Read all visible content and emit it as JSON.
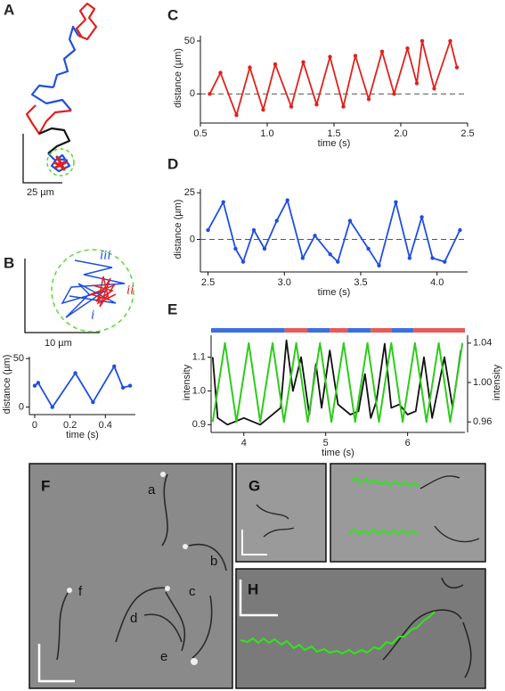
{
  "panel_letters": [
    "A",
    "B",
    "C",
    "D",
    "E",
    "F",
    "G",
    "H"
  ],
  "scale_labels": [
    "25 µm",
    "10 µm"
  ],
  "trajectory_labels": [
    "i",
    "ii",
    "iii"
  ],
  "cell_labels": [
    "a",
    "b",
    "c",
    "d",
    "e",
    "f"
  ],
  "chart_data": [
    {
      "type": "line",
      "xlabel": "time (s)",
      "ylabel": "distance (µm)",
      "x": [
        0.57,
        0.65,
        0.77,
        0.87,
        0.97,
        1.06,
        1.18,
        1.27,
        1.37,
        1.47,
        1.57,
        1.66,
        1.76,
        1.86,
        1.95,
        2.05,
        2.12,
        2.16,
        2.25,
        2.37,
        2.42
      ],
      "series": [
        {
          "color": "#e3201c",
          "values": [
            0,
            20,
            -20,
            25,
            -15,
            28,
            -12,
            30,
            -10,
            35,
            -12,
            36,
            -5,
            40,
            0,
            43,
            10,
            50,
            5,
            50,
            25
          ]
        }
      ],
      "xlim": [
        0.5,
        2.5
      ],
      "xticks": [
        0.5,
        {
          "value": 1,
          "label": "1.0"
        },
        1.5,
        {
          "value": 2,
          "label": "2.0"
        },
        2.5
      ],
      "ylim": [
        -25,
        55
      ],
      "yticks": [
        0,
        50
      ],
      "reference_line": 0
    },
    {
      "type": "line",
      "xlabel": "time (s)",
      "ylabel": "distance (µm)",
      "x": [
        2.5,
        2.6,
        2.68,
        2.73,
        2.8,
        2.87,
        2.95,
        3.02,
        3.12,
        3.2,
        3.3,
        3.35,
        3.43,
        3.55,
        3.62,
        3.73,
        3.82,
        3.9,
        3.97,
        4.05,
        4.15
      ],
      "series": [
        {
          "color": "#1f4fe0",
          "values": [
            5,
            20,
            -5,
            -12,
            5,
            -5,
            10,
            21,
            -10,
            2,
            -8,
            -12,
            10,
            -5,
            -14,
            20,
            -10,
            12,
            -10,
            -12,
            5
          ]
        }
      ],
      "xlim": [
        2.45,
        4.2
      ],
      "xticks": [
        2.5,
        {
          "value": 3,
          "label": "3.0"
        },
        3.5,
        {
          "value": 4,
          "label": "4.0"
        }
      ],
      "ylim": [
        -16,
        27
      ],
      "yticks": [
        0,
        25
      ],
      "reference_line": 0
    },
    {
      "type": "line",
      "xlabel": "time (s)",
      "ylabel": "distance (µm)",
      "x": [
        0,
        0.02,
        0.1,
        0.23,
        0.33,
        0.45,
        0.5,
        0.54
      ],
      "series": [
        {
          "color": "#1f4fe0",
          "values": [
            22,
            25,
            0,
            35,
            5,
            42,
            20,
            22
          ]
        }
      ],
      "xlim": [
        -0.03,
        0.57
      ],
      "xticks": [
        0,
        0.2,
        0.4
      ],
      "ylim": [
        -5,
        52
      ],
      "yticks": [
        0,
        50
      ]
    },
    {
      "type": "line",
      "xlabel": "time (s)",
      "ylabel": "intensity",
      "y2label": "intensity",
      "series": [
        {
          "color": "#111111",
          "x": [
            3.62,
            3.68,
            3.8,
            4.0,
            4.2,
            4.45,
            4.52,
            4.6,
            4.7,
            4.8,
            4.88,
            4.95,
            5.05,
            5.15,
            5.3,
            5.4,
            5.48,
            5.55,
            5.62,
            5.72,
            5.8,
            5.9,
            6.0,
            6.1,
            6.2,
            6.3,
            6.45,
            6.55,
            6.65
          ],
          "values": [
            1.1,
            0.92,
            0.9,
            0.92,
            0.9,
            0.95,
            1.15,
            1.0,
            1.1,
            0.93,
            1.08,
            0.95,
            1.12,
            0.96,
            0.93,
            0.94,
            1.05,
            0.92,
            0.97,
            1.14,
            0.95,
            0.96,
            0.93,
            0.94,
            1.1,
            0.92,
            1.1,
            0.95,
            1.12
          ]
        },
        {
          "color": "#2ecc1a",
          "axis": "y2",
          "x": [
            3.62,
            3.77,
            3.91,
            4.06,
            4.2,
            4.35,
            4.49,
            4.64,
            4.78,
            4.93,
            5.07,
            5.22,
            5.36,
            5.51,
            5.65,
            5.8,
            5.94,
            6.09,
            6.23,
            6.38,
            6.52,
            6.67
          ],
          "values": [
            0.96,
            1.04,
            0.96,
            1.04,
            0.96,
            1.04,
            0.96,
            1.04,
            0.96,
            1.04,
            0.96,
            1.04,
            0.96,
            1.04,
            0.96,
            1.04,
            0.96,
            1.04,
            0.96,
            1.04,
            0.96,
            1.04
          ]
        }
      ],
      "state_bars": [
        {
          "start": 3.6,
          "end": 4.5,
          "color": "#3d6fe0"
        },
        {
          "start": 4.5,
          "end": 4.78,
          "color": "#e85a5a"
        },
        {
          "start": 4.78,
          "end": 5.05,
          "color": "#3d6fe0"
        },
        {
          "start": 5.05,
          "end": 5.27,
          "color": "#e85a5a"
        },
        {
          "start": 5.27,
          "end": 5.55,
          "color": "#3d6fe0"
        },
        {
          "start": 5.55,
          "end": 5.8,
          "color": "#e85a5a"
        },
        {
          "start": 5.8,
          "end": 6.07,
          "color": "#3d6fe0"
        },
        {
          "start": 6.07,
          "end": 6.7,
          "color": "#e85a5a"
        }
      ],
      "xlim": [
        3.6,
        6.7
      ],
      "xticks": [
        4,
        5,
        6
      ],
      "ylim": [
        0.885,
        1.165
      ],
      "yticks": [
        0.9,
        {
          "value": 1,
          "label": "1.0"
        },
        1.1
      ],
      "y2lim": [
        0.952,
        1.048
      ],
      "y2ticks": [
        0.96,
        {
          "value": 1,
          "label": "1.00"
        },
        1.04
      ]
    }
  ]
}
